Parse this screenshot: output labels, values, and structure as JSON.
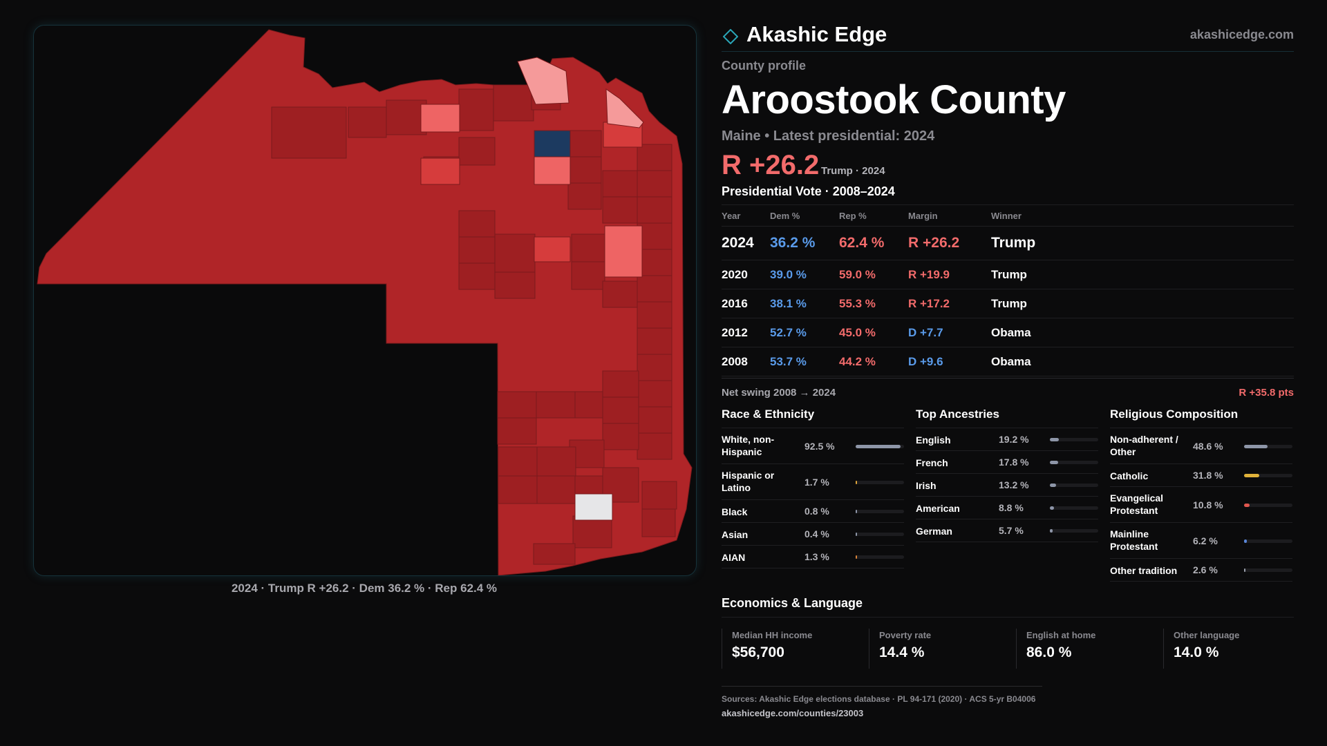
{
  "brand": {
    "name": "Akashic Edge",
    "url": "akashicedge.com"
  },
  "profile": {
    "kicker": "County profile",
    "title": "Aroostook County",
    "subtitle": "Maine • Latest presidential: 2024",
    "margin_big": "R +26.2",
    "margin_note": "Trump · 2024"
  },
  "map": {
    "caption": "2024 · Trump R +26.2 · Dem 36.2 % · Rep 62.4 %",
    "colors": {
      "base": "#b02528",
      "dark": "#9e1f22",
      "mid": "#d63c3c",
      "light": "#ee6464",
      "pale": "#f59a9a",
      "blue": "#1c3a60",
      "white": "#e6e6e8"
    }
  },
  "vote": {
    "title": "Presidential Vote · 2008–2024",
    "headers": {
      "year": "Year",
      "dem": "Dem %",
      "rep": "Rep %",
      "margin": "Margin",
      "winner": "Winner"
    },
    "rows": [
      {
        "year": "2024",
        "dem": "36.2 %",
        "rep": "62.4 %",
        "margin": "R +26.2",
        "winner": "Trump"
      },
      {
        "year": "2020",
        "dem": "39.0 %",
        "rep": "59.0 %",
        "margin": "R +19.9",
        "winner": "Trump"
      },
      {
        "year": "2016",
        "dem": "38.1 %",
        "rep": "55.3 %",
        "margin": "R +17.2",
        "winner": "Trump"
      },
      {
        "year": "2012",
        "dem": "52.7 %",
        "rep": "45.0 %",
        "margin": "D +7.7",
        "winner": "Obama"
      },
      {
        "year": "2008",
        "dem": "53.7 %",
        "rep": "44.2 %",
        "margin": "D +9.6",
        "winner": "Obama"
      }
    ],
    "swing_label": "Net swing 2008 → 2024",
    "swing_value": "R +35.8 pts"
  },
  "race": {
    "title": "Race & Ethnicity",
    "items": [
      {
        "label": "White, non-Hispanic",
        "value": "92.5 %",
        "fraction": 0.925,
        "color": "#8e96a8"
      },
      {
        "label": "Hispanic or Latino",
        "value": "1.7 %",
        "fraction": 0.017,
        "color": "#e0a53a"
      },
      {
        "label": "Black",
        "value": "0.8 %",
        "fraction": 0.008,
        "color": "#8e96a8"
      },
      {
        "label": "Asian",
        "value": "0.4 %",
        "fraction": 0.004,
        "color": "#8e96a8"
      },
      {
        "label": "AIAN",
        "value": "1.3 %",
        "fraction": 0.013,
        "color": "#d9843a"
      }
    ]
  },
  "ancestry": {
    "title": "Top Ancestries",
    "items": [
      {
        "label": "English",
        "value": "19.2 %",
        "fraction": 0.192,
        "color": "#8e96a8"
      },
      {
        "label": "French",
        "value": "17.8 %",
        "fraction": 0.178,
        "color": "#8e96a8"
      },
      {
        "label": "Irish",
        "value": "13.2 %",
        "fraction": 0.132,
        "color": "#8e96a8"
      },
      {
        "label": "American",
        "value": "8.8 %",
        "fraction": 0.088,
        "color": "#8e96a8"
      },
      {
        "label": "German",
        "value": "5.7 %",
        "fraction": 0.057,
        "color": "#8e96a8"
      }
    ]
  },
  "religion": {
    "title": "Religious Composition",
    "items": [
      {
        "label": "Non-adherent / Other",
        "value": "48.6 %",
        "fraction": 0.486,
        "color": "#8e96a8"
      },
      {
        "label": "Catholic",
        "value": "31.8 %",
        "fraction": 0.318,
        "color": "#e0b23a"
      },
      {
        "label": "Evangelical Protestant",
        "value": "10.8 %",
        "fraction": 0.108,
        "color": "#e0564e"
      },
      {
        "label": "Mainline Protestant",
        "value": "6.2 %",
        "fraction": 0.062,
        "color": "#5a86d8"
      },
      {
        "label": "Other tradition",
        "value": "2.6 %",
        "fraction": 0.026,
        "color": "#9aa0ac"
      }
    ]
  },
  "econ": {
    "title": "Economics & Language",
    "cards": [
      {
        "label": "Median HH income",
        "value": "$56,700"
      },
      {
        "label": "Poverty rate",
        "value": "14.4 %"
      },
      {
        "label": "English at home",
        "value": "86.0 %"
      },
      {
        "label": "Other language",
        "value": "14.0 %"
      }
    ]
  },
  "sources": {
    "text": "Sources: Akashic Edge elections database · PL 94-171 (2020) · ACS 5-yr B04006",
    "url": "akashicedge.com/counties/23003"
  }
}
